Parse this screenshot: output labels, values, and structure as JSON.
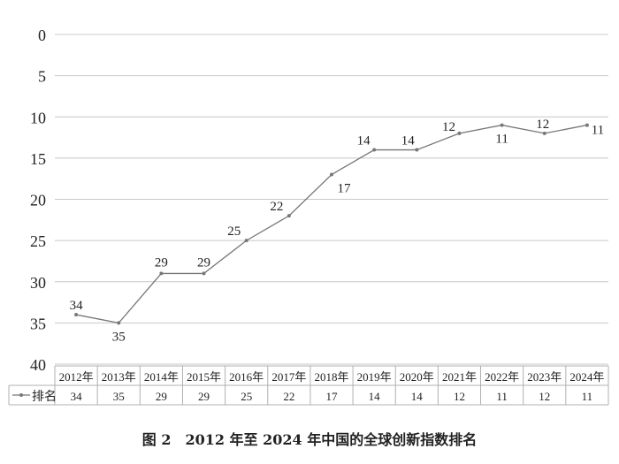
{
  "chart_data": {
    "type": "line",
    "title": "图 2　2012 年至 2024 年中国的全球创新指数排名",
    "categories": [
      "2012年",
      "2013年",
      "2014年",
      "2015年",
      "2016年",
      "2017年",
      "2018年",
      "2019年",
      "2020年",
      "2021年",
      "2022年",
      "2023年",
      "2024年"
    ],
    "series": [
      {
        "name": "排名",
        "values": [
          34,
          35,
          29,
          29,
          25,
          22,
          17,
          14,
          14,
          12,
          11,
          12,
          11
        ],
        "color": "#777777"
      }
    ],
    "ylim": [
      0,
      40
    ],
    "y_inverted": true,
    "yticks": [
      0,
      5,
      10,
      15,
      20,
      25,
      30,
      35,
      40
    ],
    "grid": true,
    "legend": "data-table",
    "xlabel": "",
    "ylabel": ""
  }
}
